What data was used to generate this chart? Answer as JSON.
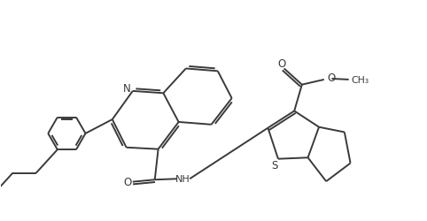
{
  "background_color": "#ffffff",
  "line_color": "#3a3a3a",
  "line_width": 1.4,
  "fig_width": 4.82,
  "fig_height": 2.51,
  "dpi": 100,
  "xlim": [
    0,
    10
  ],
  "ylim": [
    0,
    5.2
  ]
}
